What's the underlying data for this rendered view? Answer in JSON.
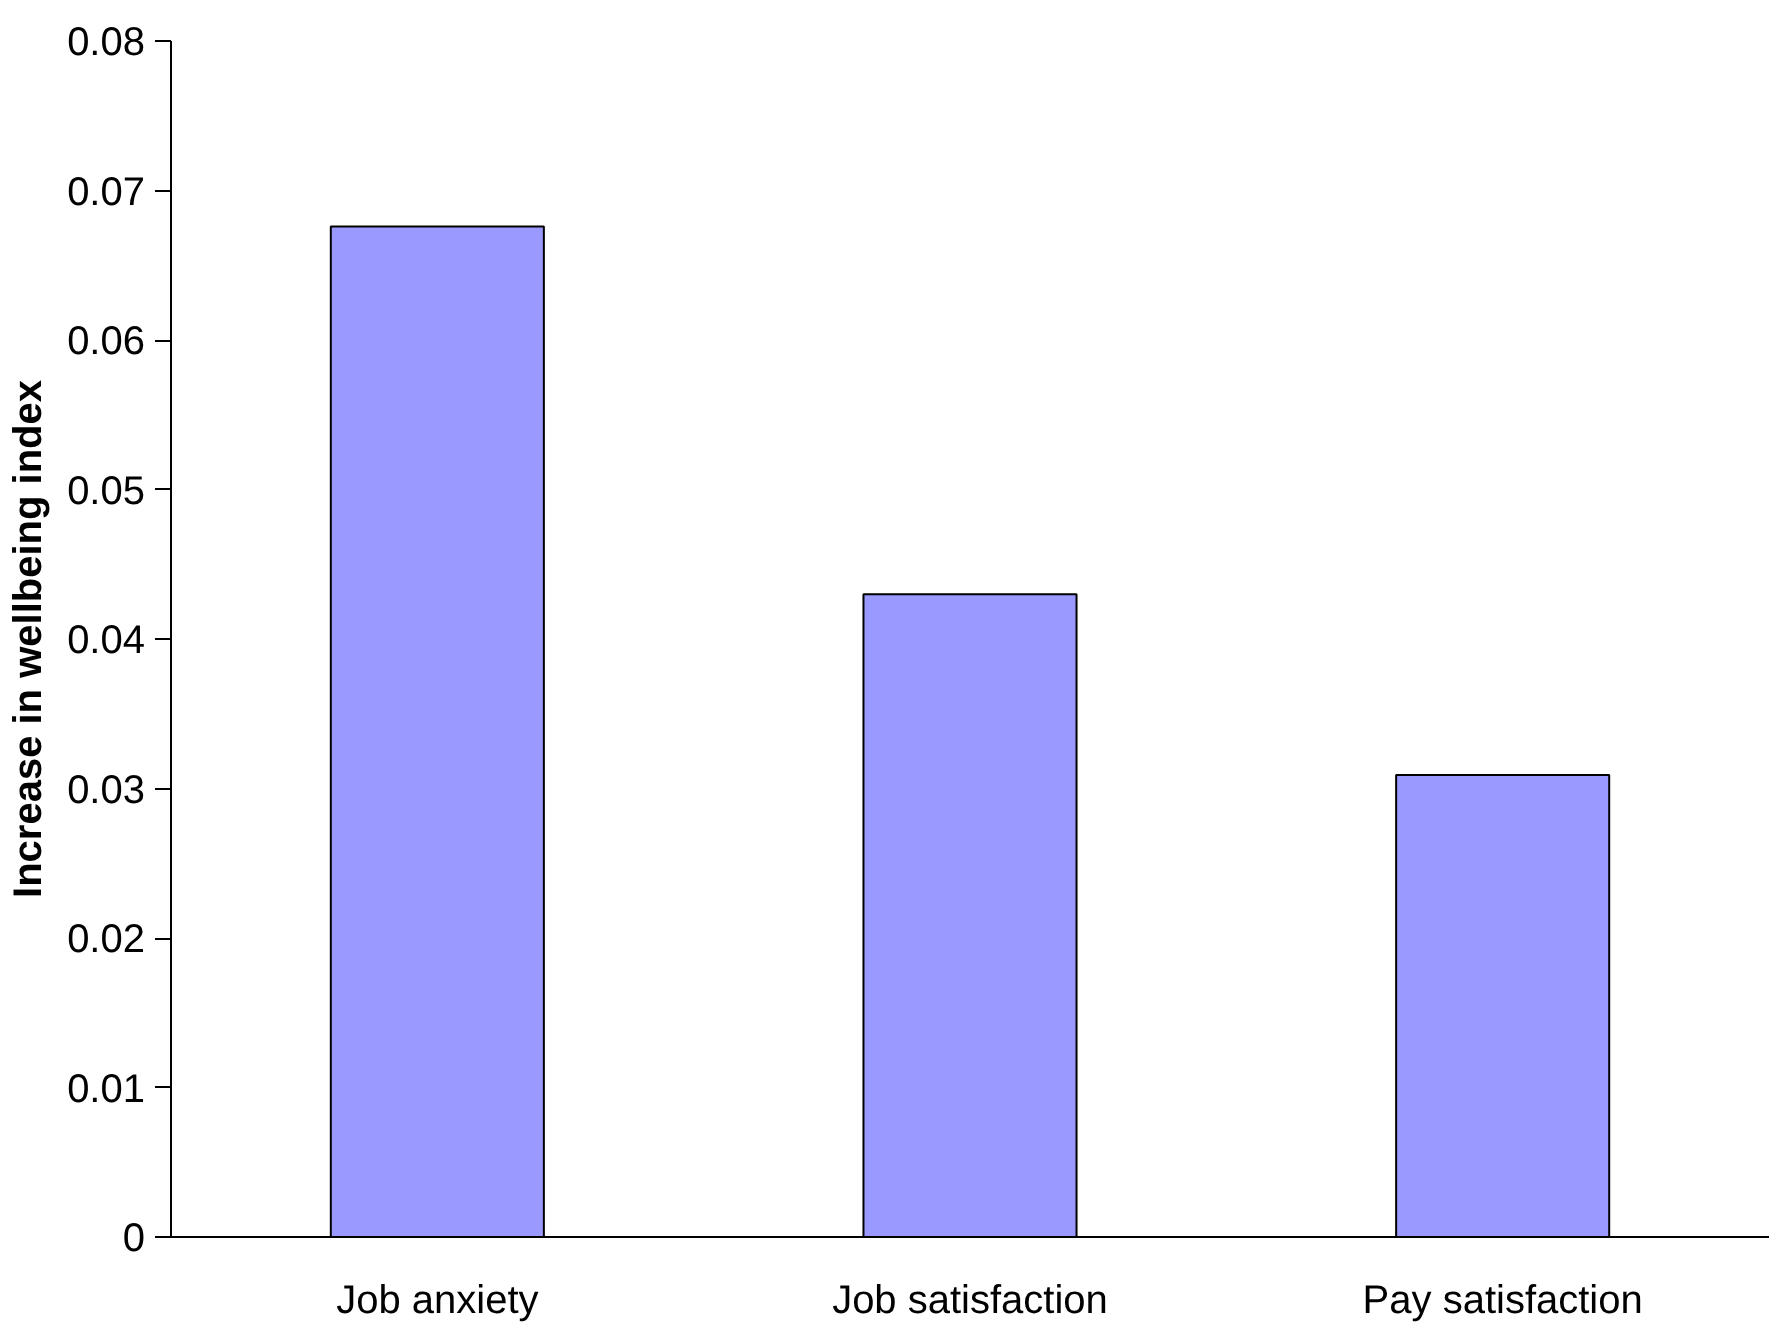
{
  "chart_data": {
    "type": "bar",
    "ylabel": "Increase in wellbeing index",
    "categories": [
      "Job anxiety",
      "Job satisfaction",
      "Pay satisfaction"
    ],
    "values": [
      0.0676,
      0.043,
      0.0309
    ],
    "color": "#9999ff",
    "ylim": [
      0,
      0.08
    ],
    "yticks": [
      0,
      0.01,
      0.02,
      0.03,
      0.04,
      0.05,
      0.06,
      0.07,
      0.08
    ],
    "grid": false
  }
}
